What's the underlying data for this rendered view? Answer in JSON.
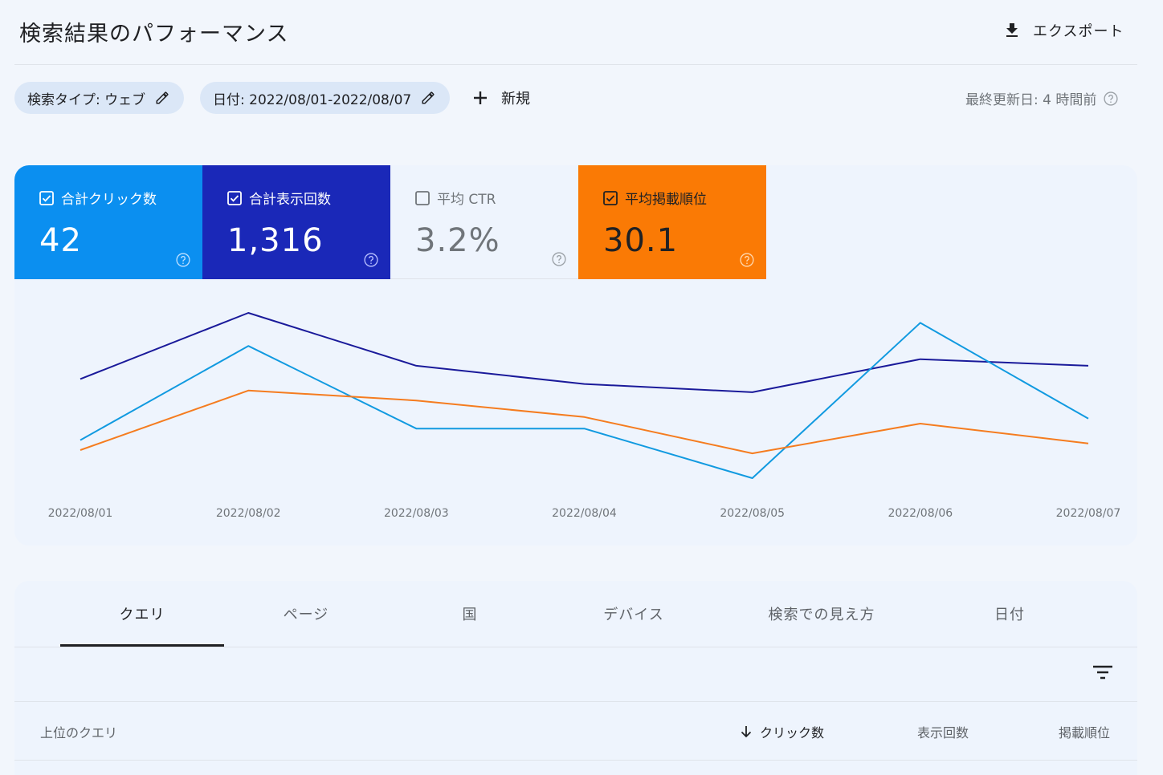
{
  "header": {
    "title": "検索結果のパフォーマンス",
    "export_label": "エクスポート"
  },
  "filters": {
    "search_type": "検索タイプ: ウェブ",
    "date": "日付: 2022/08/01-2022/08/07",
    "new_label": "新規",
    "last_updated": "最終更新日: 4 時間前"
  },
  "metrics": [
    {
      "label": "合計クリック数",
      "value": "42",
      "checked": true,
      "color": "#0b8ff0"
    },
    {
      "label": "合計表示回数",
      "value": "1,316",
      "checked": true,
      "color": "#1a28b8"
    },
    {
      "label": "平均 CTR",
      "value": "3.2%",
      "checked": false,
      "color": "#eef4fd"
    },
    {
      "label": "平均掲載順位",
      "value": "30.1",
      "checked": true,
      "color": "#fa7a05"
    }
  ],
  "chart_data": {
    "type": "line",
    "x": [
      "2022/08/01",
      "2022/08/02",
      "2022/08/03",
      "2022/08/04",
      "2022/08/05",
      "2022/08/06",
      "2022/08/07"
    ],
    "series": [
      {
        "name": "合計表示回数",
        "color": "#1a1a9a",
        "values": [
          0.6,
          1.0,
          0.68,
          0.57,
          0.52,
          0.72,
          0.68
        ]
      },
      {
        "name": "合計クリック数",
        "color": "#119ae0",
        "values": [
          0.23,
          0.8,
          0.3,
          0.3,
          0.0,
          0.94,
          0.36
        ]
      },
      {
        "name": "平均掲載順位",
        "color": "#f57c1f",
        "values": [
          0.17,
          0.53,
          0.47,
          0.37,
          0.15,
          0.33,
          0.21
        ]
      }
    ]
  },
  "tabs": [
    "クエリ",
    "ページ",
    "国",
    "デバイス",
    "検索での見え方",
    "日付"
  ],
  "table": {
    "header_query": "上位のクエリ",
    "header_clicks": "クリック数",
    "header_impressions": "表示回数",
    "header_position": "掲載順位"
  }
}
